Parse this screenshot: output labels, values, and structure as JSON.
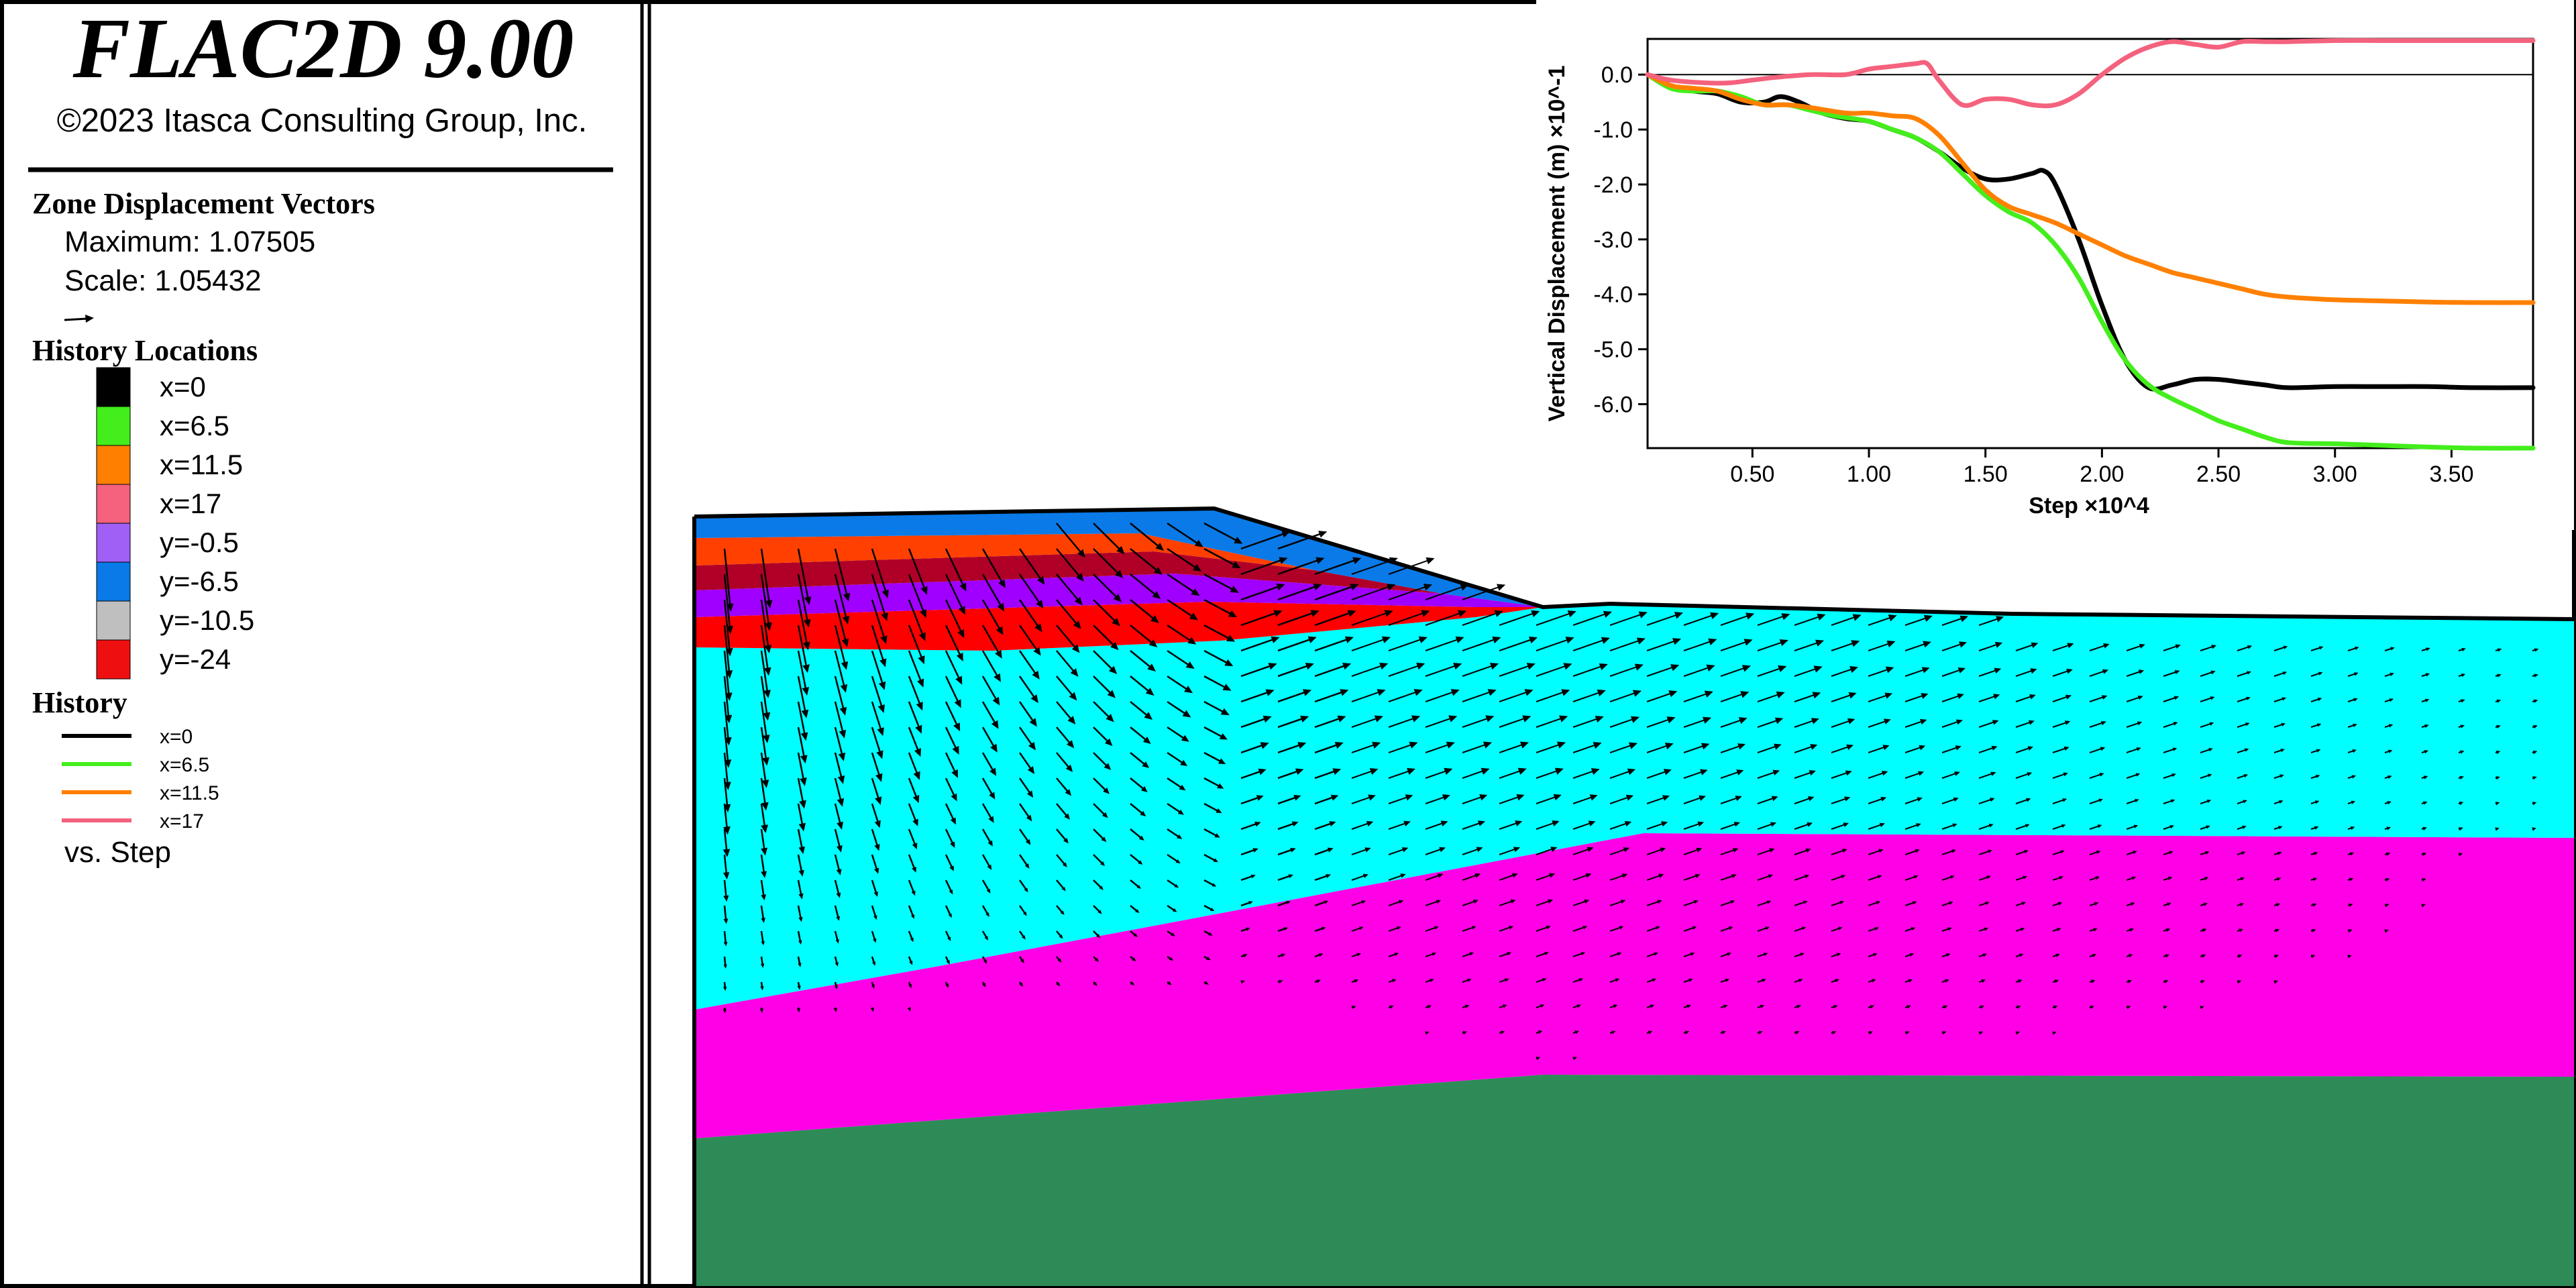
{
  "header": {
    "title": "FLAC2D 9.00",
    "copyright": "©2023 Itasca Consulting Group, Inc."
  },
  "legend": {
    "vectors": {
      "heading": "Zone Displacement Vectors",
      "maximum": "Maximum: 1.07505",
      "scale": "Scale: 1.05432"
    },
    "history_locations": {
      "heading": "History Locations",
      "items": [
        {
          "label": "x=0",
          "color": "#000000"
        },
        {
          "label": "x=6.5",
          "color": "#44ee1c"
        },
        {
          "label": "x=11.5",
          "color": "#ff8000"
        },
        {
          "label": "x=17",
          "color": "#f4627e"
        },
        {
          "label": "y=-0.5",
          "color": "#a060f6"
        },
        {
          "label": "y=-6.5",
          "color": "#0a7ae8"
        },
        {
          "label": "y=-10.5",
          "color": "#bfbfbf"
        },
        {
          "label": "y=-24",
          "color": "#ee1010"
        }
      ]
    },
    "history": {
      "heading": "History",
      "items": [
        {
          "label": "x=0",
          "color": "#000000"
        },
        {
          "label": "x=6.5",
          "color": "#44ee1c"
        },
        {
          "label": "x=11.5",
          "color": "#ff8000"
        },
        {
          "label": "x=17",
          "color": "#f4627e"
        }
      ],
      "footer": "vs. Step"
    }
  },
  "model": {
    "colors": {
      "embankment_top": "#0a7ae8",
      "embankment_orange": "#ff4000",
      "embankment_darkred": "#b00028",
      "embankment_purple": "#a000ff",
      "embankment_red": "#ff0000",
      "layer_cyan": "#00ffff",
      "layer_magenta": "#ff00e6",
      "layer_green": "#2e8b57",
      "vectors": "#000000"
    }
  },
  "chart_data": {
    "type": "line",
    "title": "",
    "xlabel": "Step ×10^4",
    "ylabel": "Vertical Displacement (m) ×10^-1",
    "xlim": [
      0.05,
      3.85
    ],
    "ylim": [
      -6.8,
      0.65
    ],
    "xticks": [
      "0.50",
      "1.00",
      "1.50",
      "2.00",
      "2.50",
      "3.00",
      "3.50"
    ],
    "xtick_values": [
      0.5,
      1.0,
      1.5,
      2.0,
      2.5,
      3.0,
      3.5
    ],
    "yticks": [
      "0.0",
      "-1.0",
      "-2.0",
      "-3.0",
      "-4.0",
      "-5.0",
      "-6.0"
    ],
    "ytick_values": [
      0,
      -1,
      -2,
      -3,
      -4,
      -5,
      -6
    ],
    "grid": false,
    "zero_line": true,
    "series": [
      {
        "name": "x=0",
        "color": "#000000",
        "x": [
          0.05,
          0.15,
          0.25,
          0.35,
          0.45,
          0.55,
          0.62,
          0.7,
          0.8,
          0.9,
          1.0,
          1.1,
          1.2,
          1.3,
          1.4,
          1.5,
          1.6,
          1.7,
          1.75,
          1.8,
          1.9,
          2.0,
          2.1,
          2.2,
          2.3,
          2.4,
          2.5,
          2.6,
          2.7,
          2.8,
          3.0,
          3.2,
          3.4,
          3.6,
          3.85
        ],
        "y": [
          0,
          -0.2,
          -0.3,
          -0.35,
          -0.5,
          -0.5,
          -0.4,
          -0.5,
          -0.7,
          -0.8,
          -0.85,
          -1.0,
          -1.15,
          -1.4,
          -1.7,
          -1.9,
          -1.9,
          -1.8,
          -1.75,
          -2.0,
          -3.0,
          -4.2,
          -5.2,
          -5.7,
          -5.65,
          -5.55,
          -5.55,
          -5.6,
          -5.65,
          -5.7,
          -5.68,
          -5.68,
          -5.68,
          -5.7,
          -5.7
        ]
      },
      {
        "name": "x=6.5",
        "color": "#44ee1c",
        "x": [
          0.05,
          0.15,
          0.25,
          0.35,
          0.45,
          0.55,
          0.65,
          0.75,
          0.85,
          1.0,
          1.1,
          1.2,
          1.3,
          1.4,
          1.5,
          1.6,
          1.7,
          1.8,
          1.9,
          2.0,
          2.1,
          2.2,
          2.3,
          2.4,
          2.5,
          2.6,
          2.7,
          2.8,
          3.0,
          3.2,
          3.4,
          3.6,
          3.85
        ],
        "y": [
          0,
          -0.25,
          -0.3,
          -0.3,
          -0.4,
          -0.55,
          -0.55,
          -0.65,
          -0.75,
          -0.85,
          -1.0,
          -1.15,
          -1.4,
          -1.8,
          -2.2,
          -2.5,
          -2.7,
          -3.1,
          -3.7,
          -4.5,
          -5.2,
          -5.65,
          -5.9,
          -6.1,
          -6.3,
          -6.45,
          -6.6,
          -6.7,
          -6.72,
          -6.75,
          -6.78,
          -6.8,
          -6.8
        ]
      },
      {
        "name": "x=11.5",
        "color": "#ff8000",
        "x": [
          0.05,
          0.15,
          0.25,
          0.35,
          0.45,
          0.55,
          0.65,
          0.75,
          0.9,
          1.0,
          1.1,
          1.2,
          1.3,
          1.4,
          1.5,
          1.6,
          1.7,
          1.8,
          1.9,
          2.0,
          2.1,
          2.2,
          2.3,
          2.4,
          2.5,
          2.6,
          2.7,
          2.8,
          3.0,
          3.2,
          3.4,
          3.6,
          3.85
        ],
        "y": [
          0,
          -0.2,
          -0.25,
          -0.3,
          -0.45,
          -0.55,
          -0.55,
          -0.6,
          -0.7,
          -0.7,
          -0.75,
          -0.8,
          -1.1,
          -1.6,
          -2.1,
          -2.4,
          -2.55,
          -2.7,
          -2.9,
          -3.1,
          -3.3,
          -3.45,
          -3.6,
          -3.7,
          -3.8,
          -3.9,
          -4.0,
          -4.05,
          -4.1,
          -4.12,
          -4.14,
          -4.15,
          -4.15
        ]
      },
      {
        "name": "x=17",
        "color": "#f4627e",
        "x": [
          0.05,
          0.15,
          0.3,
          0.4,
          0.5,
          0.6,
          0.75,
          0.9,
          1.0,
          1.1,
          1.2,
          1.25,
          1.3,
          1.4,
          1.5,
          1.6,
          1.7,
          1.8,
          1.9,
          2.0,
          2.1,
          2.2,
          2.3,
          2.4,
          2.5,
          2.6,
          2.7,
          2.8,
          3.0,
          3.2,
          3.4,
          3.6,
          3.85
        ],
        "y": [
          0,
          -0.1,
          -0.15,
          -0.15,
          -0.1,
          -0.05,
          0.0,
          0.0,
          0.1,
          0.15,
          0.2,
          0.2,
          -0.1,
          -0.55,
          -0.45,
          -0.45,
          -0.55,
          -0.55,
          -0.35,
          0.0,
          0.3,
          0.5,
          0.6,
          0.55,
          0.5,
          0.6,
          0.6,
          0.6,
          0.62,
          0.62,
          0.62,
          0.62,
          0.62
        ]
      }
    ]
  }
}
